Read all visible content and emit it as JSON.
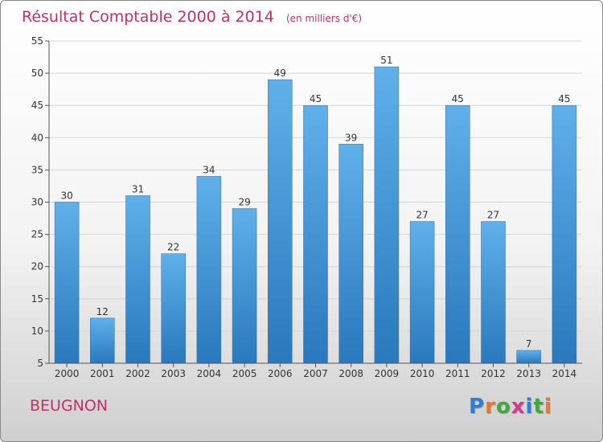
{
  "chart_data": {
    "type": "bar",
    "title": "Résultat Comptable 2000 à 2014",
    "subtitle": "(en milliers d'€)",
    "categories": [
      "2000",
      "2001",
      "2002",
      "2003",
      "2004",
      "2005",
      "2006",
      "2007",
      "2008",
      "2009",
      "2010",
      "2011",
      "2012",
      "2013",
      "2014"
    ],
    "values": [
      30,
      12,
      31,
      22,
      34,
      29,
      49,
      45,
      39,
      51,
      27,
      45,
      27,
      7,
      45
    ],
    "ylim": [
      5,
      55
    ],
    "yticks": [
      5,
      10,
      15,
      20,
      25,
      30,
      35,
      40,
      45,
      50,
      55
    ],
    "grid": true,
    "bar_color": "#3e95d8"
  },
  "place_name": "BEUGNON",
  "logo": {
    "letters": [
      "P",
      "r",
      "o",
      "x",
      "i",
      "t",
      "i"
    ],
    "colors": [
      "#2f7fd0",
      "#e8762d",
      "#3faa3c",
      "#d23c8c",
      "#2f7fd0",
      "#3faa3c",
      "#e8762d"
    ]
  }
}
